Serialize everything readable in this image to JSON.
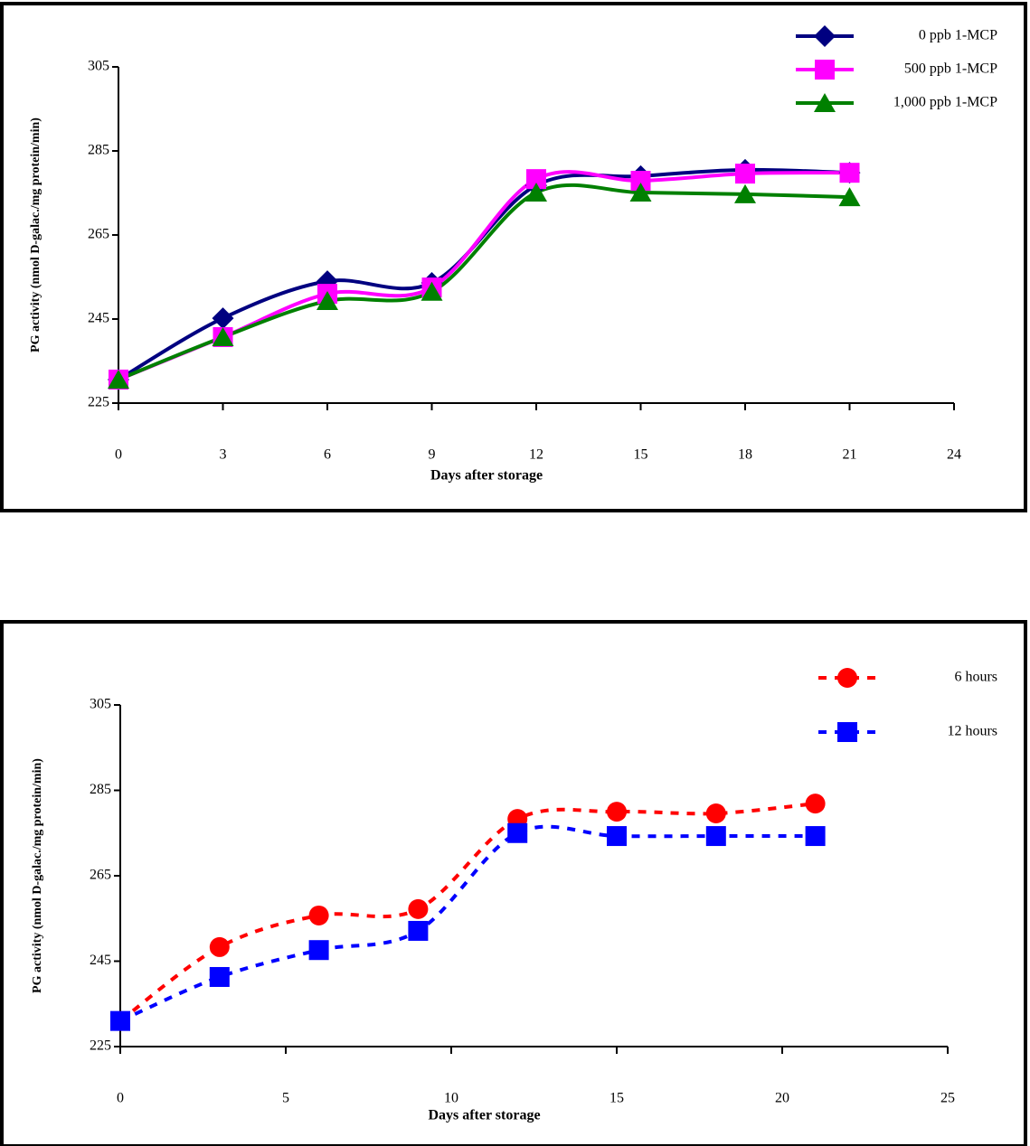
{
  "chart_data": [
    {
      "type": "line",
      "smooth": true,
      "line_style": "solid",
      "x_label": "Days after storage",
      "y_label": "PG activity (nmol D-galac./mg protein/min)",
      "xlim": [
        0,
        24
      ],
      "xticks": [
        0,
        3,
        6,
        9,
        12,
        15,
        18,
        21,
        24
      ],
      "ylim": [
        225,
        305
      ],
      "yticks": [
        225,
        245,
        265,
        285,
        305
      ],
      "x": [
        0,
        3,
        6,
        9,
        12,
        15,
        18,
        21
      ],
      "series": [
        {
          "name": "0 ppb 1-MCP",
          "color": "#000080",
          "marker": "diamond",
          "values": [
            230.6,
            245.2,
            254,
            253.6,
            276.8,
            279,
            280.5,
            279.8
          ]
        },
        {
          "name": "500 ppb 1-MCP",
          "color": "#ff00ff",
          "marker": "square",
          "values": [
            230.6,
            240.7,
            251,
            252.5,
            278.3,
            277.9,
            279.6,
            279.8
          ]
        },
        {
          "name": "1,000 ppb 1-MCP",
          "color": "#008000",
          "marker": "triangle",
          "values": [
            230.6,
            240.7,
            249.3,
            251.5,
            275.1,
            275.1,
            274.7,
            274
          ]
        }
      ]
    },
    {
      "type": "line",
      "smooth": true,
      "line_style": "dashed",
      "x_label": "Days after storage",
      "y_label": "PG activity (nmol D-galac./mg protein/min)",
      "xlim": [
        0,
        25
      ],
      "xticks": [
        0,
        5,
        10,
        15,
        20,
        25
      ],
      "ylim": [
        225,
        305
      ],
      "yticks": [
        225,
        245,
        265,
        285,
        305
      ],
      "x": [
        0,
        3,
        6,
        9,
        12,
        15,
        18,
        21
      ],
      "series": [
        {
          "name": "6 hours",
          "color": "#ff0000",
          "marker": "circle",
          "values": [
            231,
            248.3,
            255.7,
            257.2,
            278.3,
            280,
            279.6,
            281.9
          ]
        },
        {
          "name": "12 hours",
          "color": "#0000ff",
          "marker": "square",
          "values": [
            231,
            241.3,
            247.6,
            252.1,
            275,
            274.3,
            274.3,
            274.3
          ]
        }
      ]
    }
  ]
}
